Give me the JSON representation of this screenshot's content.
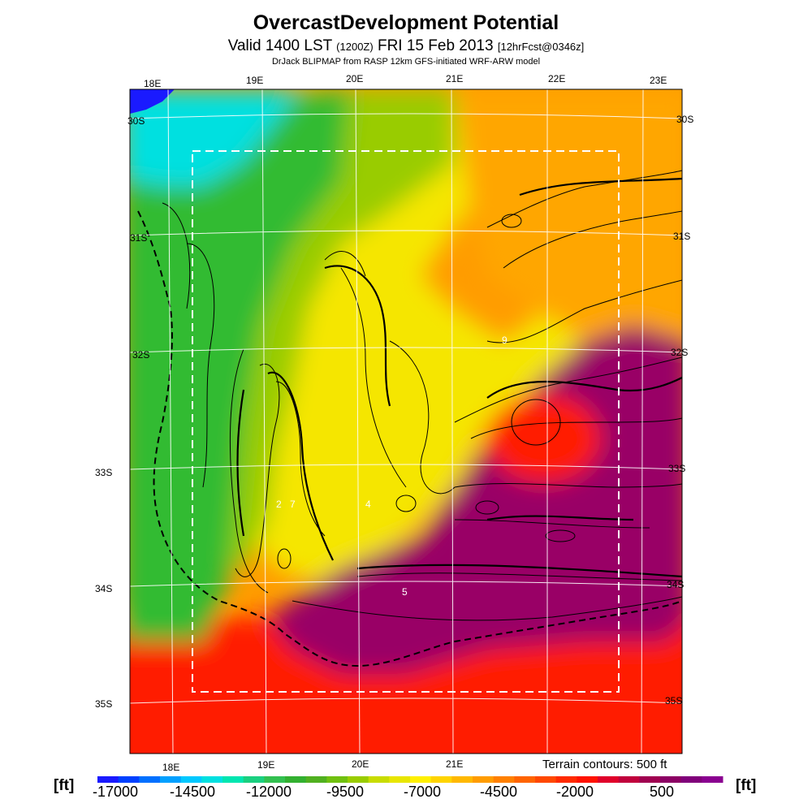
{
  "header": {
    "title": "OvercastDevelopment Potential",
    "valid_main": "Valid 1400 LST",
    "valid_zulu": "(1200Z)",
    "valid_date": "FRI 15 Feb 2013",
    "forecast": "[12hrFcst@0346z]",
    "model": "DrJack BLIPMAP from RASP 12km GFS-initiated WRF-ARW model"
  },
  "map": {
    "lon_labels_top": [
      "18E",
      "19E",
      "20E",
      "21E",
      "22E",
      "23E"
    ],
    "lon_labels_bottom": [
      "18E",
      "19E",
      "20E",
      "21E"
    ],
    "lat_labels_left": [
      "30S",
      "31S",
      "32S",
      "33S",
      "34S",
      "35S"
    ],
    "lat_labels_right": [
      "30S",
      "31S",
      "32S",
      "33S",
      "34S",
      "35S"
    ],
    "contour_labels": [
      "9",
      "2",
      "7",
      "4",
      "5"
    ],
    "terrain_note": "Terrain contours: 500 ft",
    "inner_box": "dashed-white",
    "colors": {
      "deep_blue": "#1a1aff",
      "cyan": "#00e0e0",
      "green": "#33bb33",
      "yellow": "#f5e600",
      "orange": "#ff9900",
      "red": "#ff1a00",
      "magenta": "#990066"
    }
  },
  "colorbar": {
    "unit_left": "[ft]",
    "unit_right": "[ft]",
    "ticks": [
      "-17000",
      "-14500",
      "-12000",
      "-9500",
      "-7000",
      "-4500",
      "-2000",
      "500"
    ],
    "colors": [
      "#1a1aff",
      "#0040ff",
      "#0070ff",
      "#00a0ff",
      "#00c8ff",
      "#00e0e0",
      "#00e6b0",
      "#1ad080",
      "#33c050",
      "#33b030",
      "#50b020",
      "#70c010",
      "#99cc00",
      "#c8dc00",
      "#e8e600",
      "#fff000",
      "#ffd400",
      "#ffb800",
      "#ff9c00",
      "#ff8000",
      "#ff6400",
      "#ff4800",
      "#ff2a00",
      "#ff1200",
      "#e0002a",
      "#c0003c",
      "#a00050",
      "#8c0064",
      "#80007a",
      "#8a0090"
    ]
  }
}
